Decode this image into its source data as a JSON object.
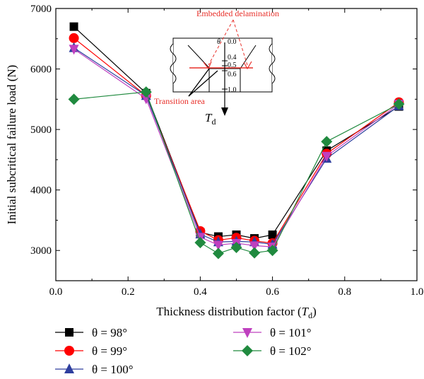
{
  "chart_data": {
    "type": "line",
    "xlabel": "Thickness distribution factor (T",
    "xlabel_sub": "d",
    "xlabel_close": ")",
    "ylabel": "Initial subcritical failure load (N)",
    "xlim": [
      0.0,
      1.0
    ],
    "ylim": [
      2500,
      7000
    ],
    "xticks": [
      "0.0",
      "0.2",
      "0.4",
      "0.6",
      "0.8",
      "1.0"
    ],
    "yticks": [
      "3000",
      "4000",
      "5000",
      "6000",
      "7000"
    ],
    "x": [
      0.05,
      0.25,
      0.4,
      0.45,
      0.5,
      0.55,
      0.6,
      0.75,
      0.95
    ],
    "series": [
      {
        "name": "θ = 98°",
        "color": "#000000",
        "marker": "square",
        "values": [
          6700,
          5600,
          3300,
          3230,
          3260,
          3200,
          3260,
          4650,
          5380
        ]
      },
      {
        "name": "θ = 99°",
        "color": "#ff0000",
        "marker": "circle",
        "values": [
          6510,
          5560,
          3320,
          3170,
          3210,
          3160,
          3120,
          4600,
          5450
        ]
      },
      {
        "name": "θ = 100°",
        "color": "#2e3f9e",
        "marker": "triangle-up",
        "values": [
          6350,
          5560,
          3270,
          3140,
          3150,
          3140,
          3100,
          4520,
          5390
        ]
      },
      {
        "name": "θ = 101°",
        "color": "#bf40bf",
        "marker": "triangle-down",
        "values": [
          6330,
          5510,
          3220,
          3090,
          3120,
          3080,
          3060,
          4560,
          5420
        ]
      },
      {
        "name": "θ = 102°",
        "color": "#208a3f",
        "marker": "diamond",
        "values": [
          5500,
          5620,
          3130,
          2950,
          3050,
          2960,
          3000,
          4800,
          5420
        ]
      }
    ],
    "legend": "bottom",
    "inset": {
      "theta_symbol": "θ",
      "scale": [
        "0.0",
        "0.4",
        "0.5",
        "0.6",
        "1.0"
      ],
      "label_delamination": "Embedded delamination",
      "label_transition": "Transition area",
      "td_symbol": "T",
      "td_sub": "d"
    }
  }
}
